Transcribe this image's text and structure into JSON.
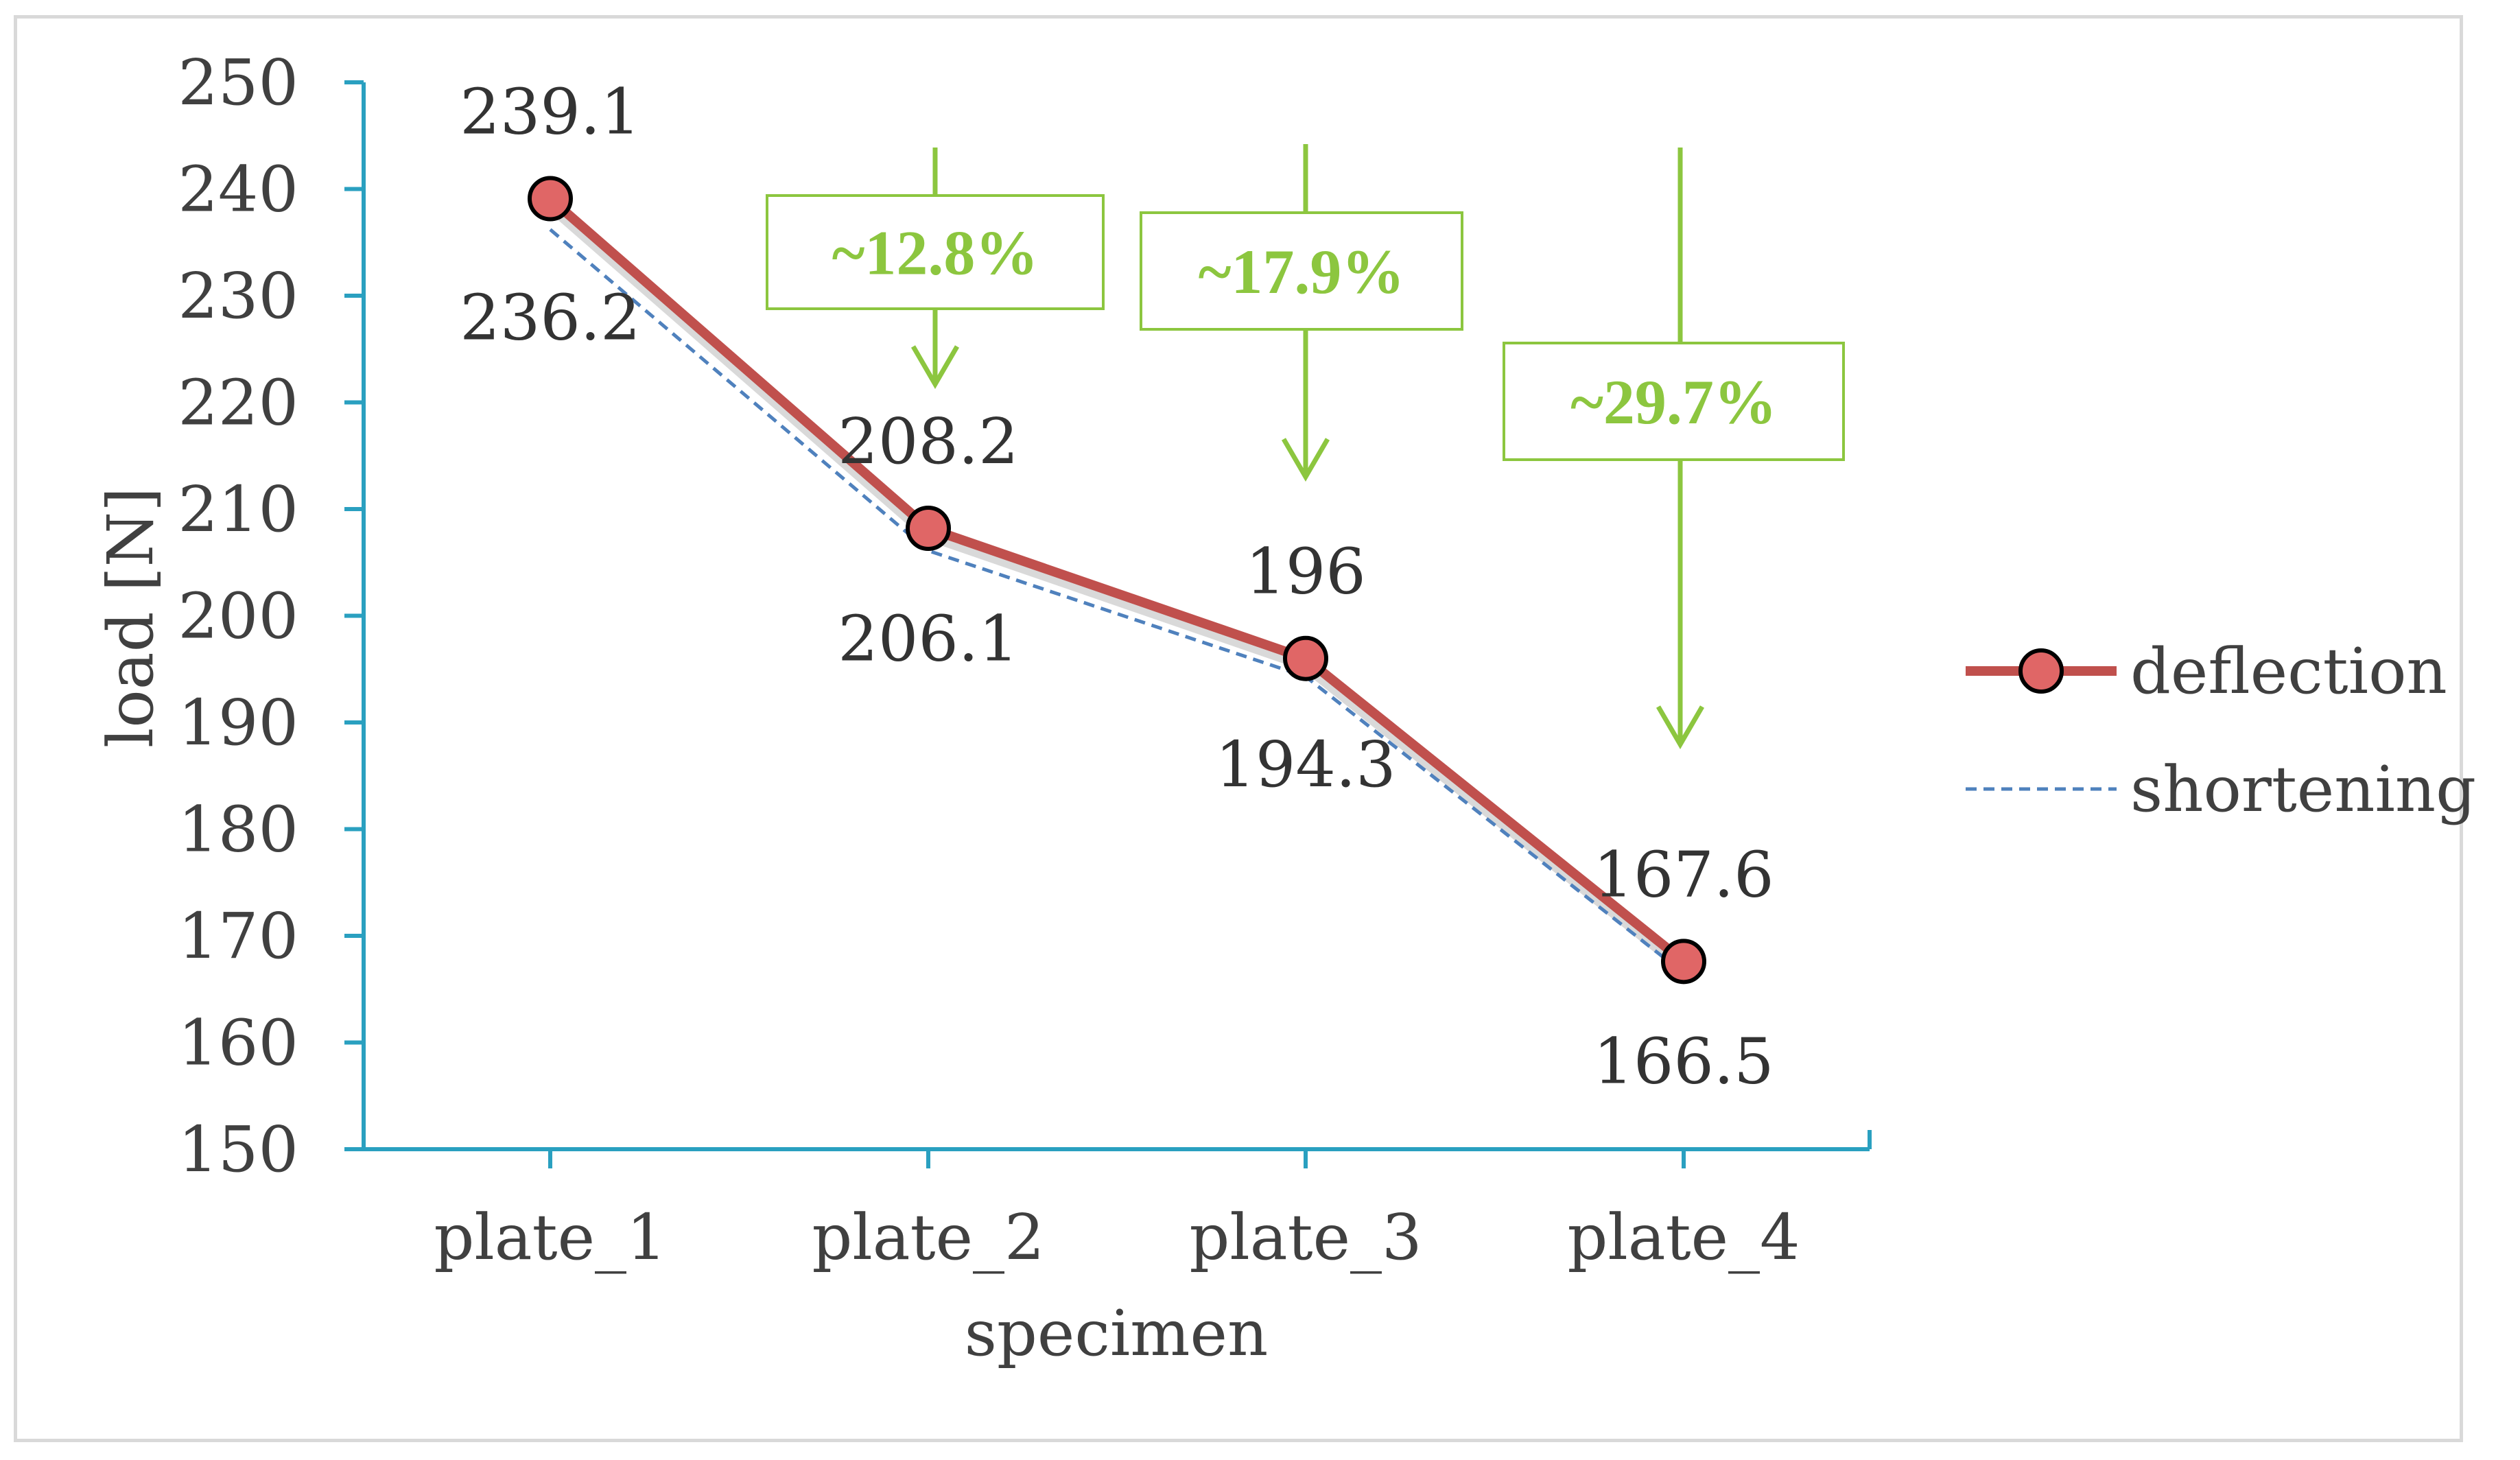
{
  "chart_data": {
    "type": "line",
    "title": "",
    "xlabel": "specimen",
    "ylabel": "load [N]",
    "ylim": [
      150,
      250
    ],
    "ytick_step": 10,
    "categories": [
      "plate_1",
      "plate_2",
      "plate_3",
      "plate_4"
    ],
    "series": [
      {
        "name": "deflection",
        "values": [
          239.1,
          208.2,
          196,
          167.6
        ],
        "color": "#c0504d",
        "marker_color": "#e06666",
        "style": "solid"
      },
      {
        "name": "shortening",
        "values": [
          236.2,
          206.1,
          194.3,
          166.5
        ],
        "color": "#4f81bd",
        "style": "dashed"
      }
    ],
    "data_labels": {
      "deflection": [
        "239.1",
        "208.2",
        "196",
        "167.6"
      ],
      "shortening": [
        "236.2",
        "206.1",
        "194.3",
        "166.5"
      ]
    },
    "annotations": [
      {
        "text": "~12.8%",
        "category": "plate_2"
      },
      {
        "text": "~17.9%",
        "category": "plate_3"
      },
      {
        "text": "~29.7%",
        "category": "plate_4"
      }
    ],
    "annotation_color": "#8cc63f",
    "axis_color": "#2aa0c0",
    "grid": false,
    "legend_position": "right"
  }
}
